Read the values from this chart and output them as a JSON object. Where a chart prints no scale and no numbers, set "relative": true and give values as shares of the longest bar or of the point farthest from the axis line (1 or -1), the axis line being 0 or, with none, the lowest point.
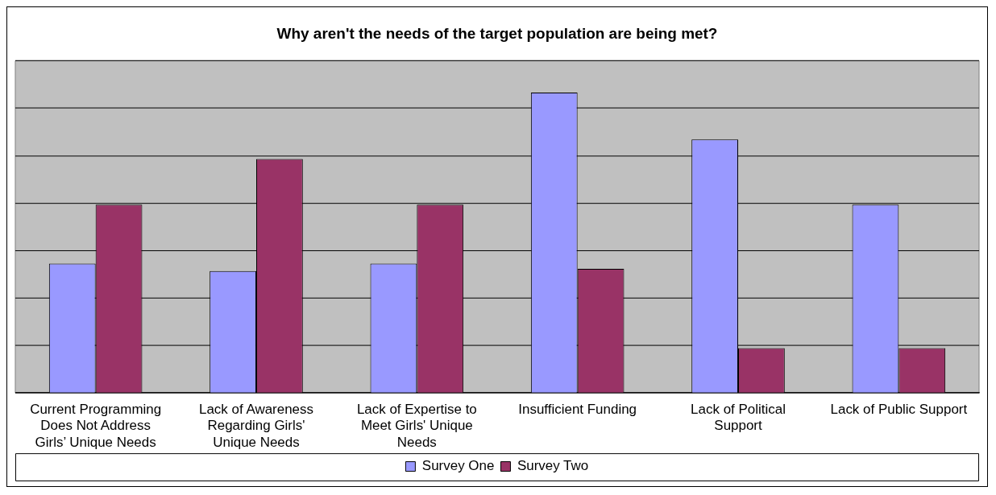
{
  "chart_data": {
    "type": "bar",
    "title": "Why aren't the needs of the target population are being met?",
    "categories": [
      "Current Programming Does Not Address Girls’ Unique Needs",
      "Lack of Awareness Regarding Girls' Unique Needs",
      "Lack of Expertise to Meet Girls' Unique Needs",
      "Insufficient Funding",
      "Lack of Political Support",
      "Lack of Public Support"
    ],
    "series": [
      {
        "name": "Survey One",
        "color": "#9999ff",
        "values": [
          0.431,
          0.406,
          0.431,
          1,
          0.844,
          0.627
        ]
      },
      {
        "name": "Survey Two",
        "color": "#993366",
        "values": [
          0.627,
          0.779,
          0.627,
          0.413,
          0.149,
          0.149
        ]
      }
    ],
    "relative": true,
    "grid": "y",
    "legend": "bottom"
  }
}
